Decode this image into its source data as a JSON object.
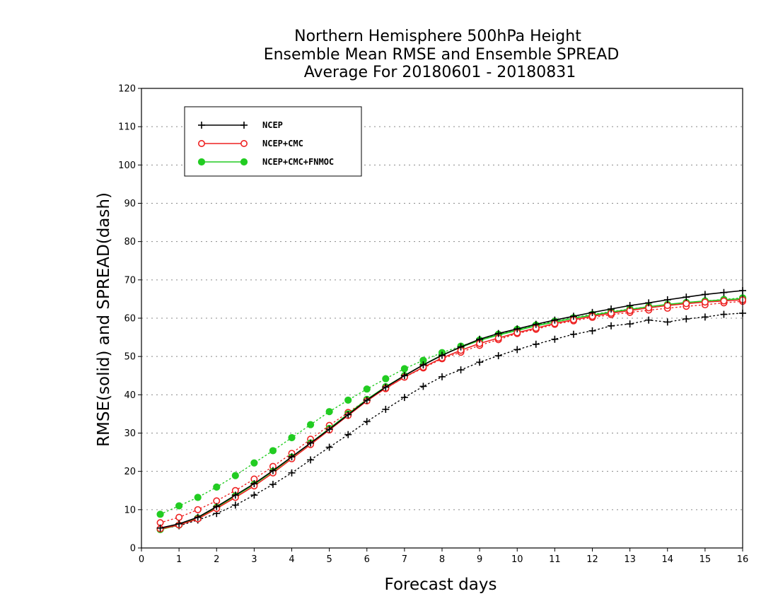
{
  "chart_data": {
    "type": "line",
    "title": [
      "Northern Hemisphere 500hPa Height",
      "Ensemble Mean RMSE and Ensemble SPREAD",
      "Average For 20180601 - 20180831"
    ],
    "xlabel": "Forecast days",
    "ylabel": "RMSE(solid) and SPREAD(dash)",
    "xlim": [
      0,
      16
    ],
    "ylim": [
      0,
      120
    ],
    "xticks": [
      "0",
      "1",
      "2",
      "3",
      "4",
      "5",
      "6",
      "7",
      "8",
      "9",
      "10",
      "11",
      "12",
      "13",
      "14",
      "15",
      "16"
    ],
    "yticks": [
      "0",
      "10",
      "20",
      "30",
      "40",
      "50",
      "60",
      "70",
      "80",
      "90",
      "100",
      "110",
      "120"
    ],
    "grid": true,
    "legend_position": "top-left",
    "x": [
      0.5,
      1,
      1.5,
      2,
      2.5,
      3,
      3.5,
      4,
      4.5,
      5,
      5.5,
      6,
      6.5,
      7,
      7.5,
      8,
      8.5,
      9,
      9.5,
      10,
      10.5,
      11,
      11.5,
      12,
      12.5,
      13,
      13.5,
      14,
      14.5,
      15,
      15.5,
      16
    ],
    "series": [
      {
        "name": "NCEP",
        "color": "#000000",
        "marker": "plus",
        "rmse": [
          5.2,
          6.3,
          8.0,
          10.8,
          13.8,
          16.8,
          20.2,
          23.8,
          27.4,
          31.0,
          34.8,
          38.6,
          42.0,
          45.0,
          47.8,
          50.3,
          52.5,
          54.5,
          56.0,
          57.2,
          58.4,
          59.5,
          60.5,
          61.5,
          62.4,
          63.3,
          64.0,
          64.8,
          65.5,
          66.2,
          66.7,
          67.2
        ],
        "spread": [
          5.0,
          5.8,
          7.3,
          9.0,
          11.2,
          13.8,
          16.6,
          19.6,
          23.0,
          26.3,
          29.6,
          33.0,
          36.2,
          39.3,
          42.2,
          44.7,
          46.5,
          48.5,
          50.2,
          51.8,
          53.2,
          54.5,
          55.8,
          56.7,
          58.0,
          58.5,
          59.5,
          59.0,
          59.8,
          60.3,
          61.0,
          61.3
        ]
      },
      {
        "name": "NCEP+CMC",
        "color": "#ee2222",
        "marker": "open-circle",
        "rmse": [
          5.0,
          6.0,
          7.6,
          10.3,
          13.2,
          16.2,
          19.6,
          23.3,
          27.0,
          30.8,
          34.6,
          38.4,
          41.7,
          44.6,
          47.2,
          49.6,
          51.6,
          53.4,
          54.8,
          56.2,
          57.4,
          58.6,
          59.6,
          60.5,
          61.3,
          62.0,
          62.7,
          63.3,
          63.8,
          64.2,
          64.5,
          64.8
        ],
        "spread": [
          6.6,
          8.0,
          10.0,
          12.3,
          15.0,
          18.0,
          21.3,
          24.7,
          28.4,
          32.0,
          35.4,
          38.7,
          41.6,
          44.6,
          47.0,
          49.4,
          51.1,
          52.9,
          54.4,
          56.0,
          57.1,
          58.4,
          59.3,
          60.2,
          60.9,
          61.5,
          62.1,
          62.6,
          63.1,
          63.5,
          64.0,
          64.4
        ]
      },
      {
        "name": "NCEP+CMC+FNMOC",
        "color": "#22cc22",
        "marker": "filled-circle",
        "rmse": [
          4.8,
          6.0,
          7.8,
          10.6,
          13.6,
          16.6,
          20.0,
          23.7,
          27.4,
          31.2,
          35.0,
          38.8,
          42.1,
          45.0,
          47.8,
          50.4,
          52.4,
          54.2,
          55.6,
          56.8,
          58.0,
          59.0,
          60.0,
          60.8,
          61.6,
          62.3,
          63.0,
          63.6,
          64.1,
          64.5,
          64.8,
          65.1
        ],
        "spread": [
          8.8,
          11.0,
          13.2,
          15.9,
          18.9,
          22.2,
          25.4,
          28.8,
          32.2,
          35.6,
          38.6,
          41.5,
          44.2,
          46.8,
          49.0,
          51.0,
          52.7,
          54.3,
          55.8,
          57.1,
          58.2,
          59.2,
          60.1,
          61.0,
          61.7,
          62.4,
          63.0,
          63.5,
          64.0,
          64.5,
          64.9,
          65.3
        ]
      }
    ]
  }
}
